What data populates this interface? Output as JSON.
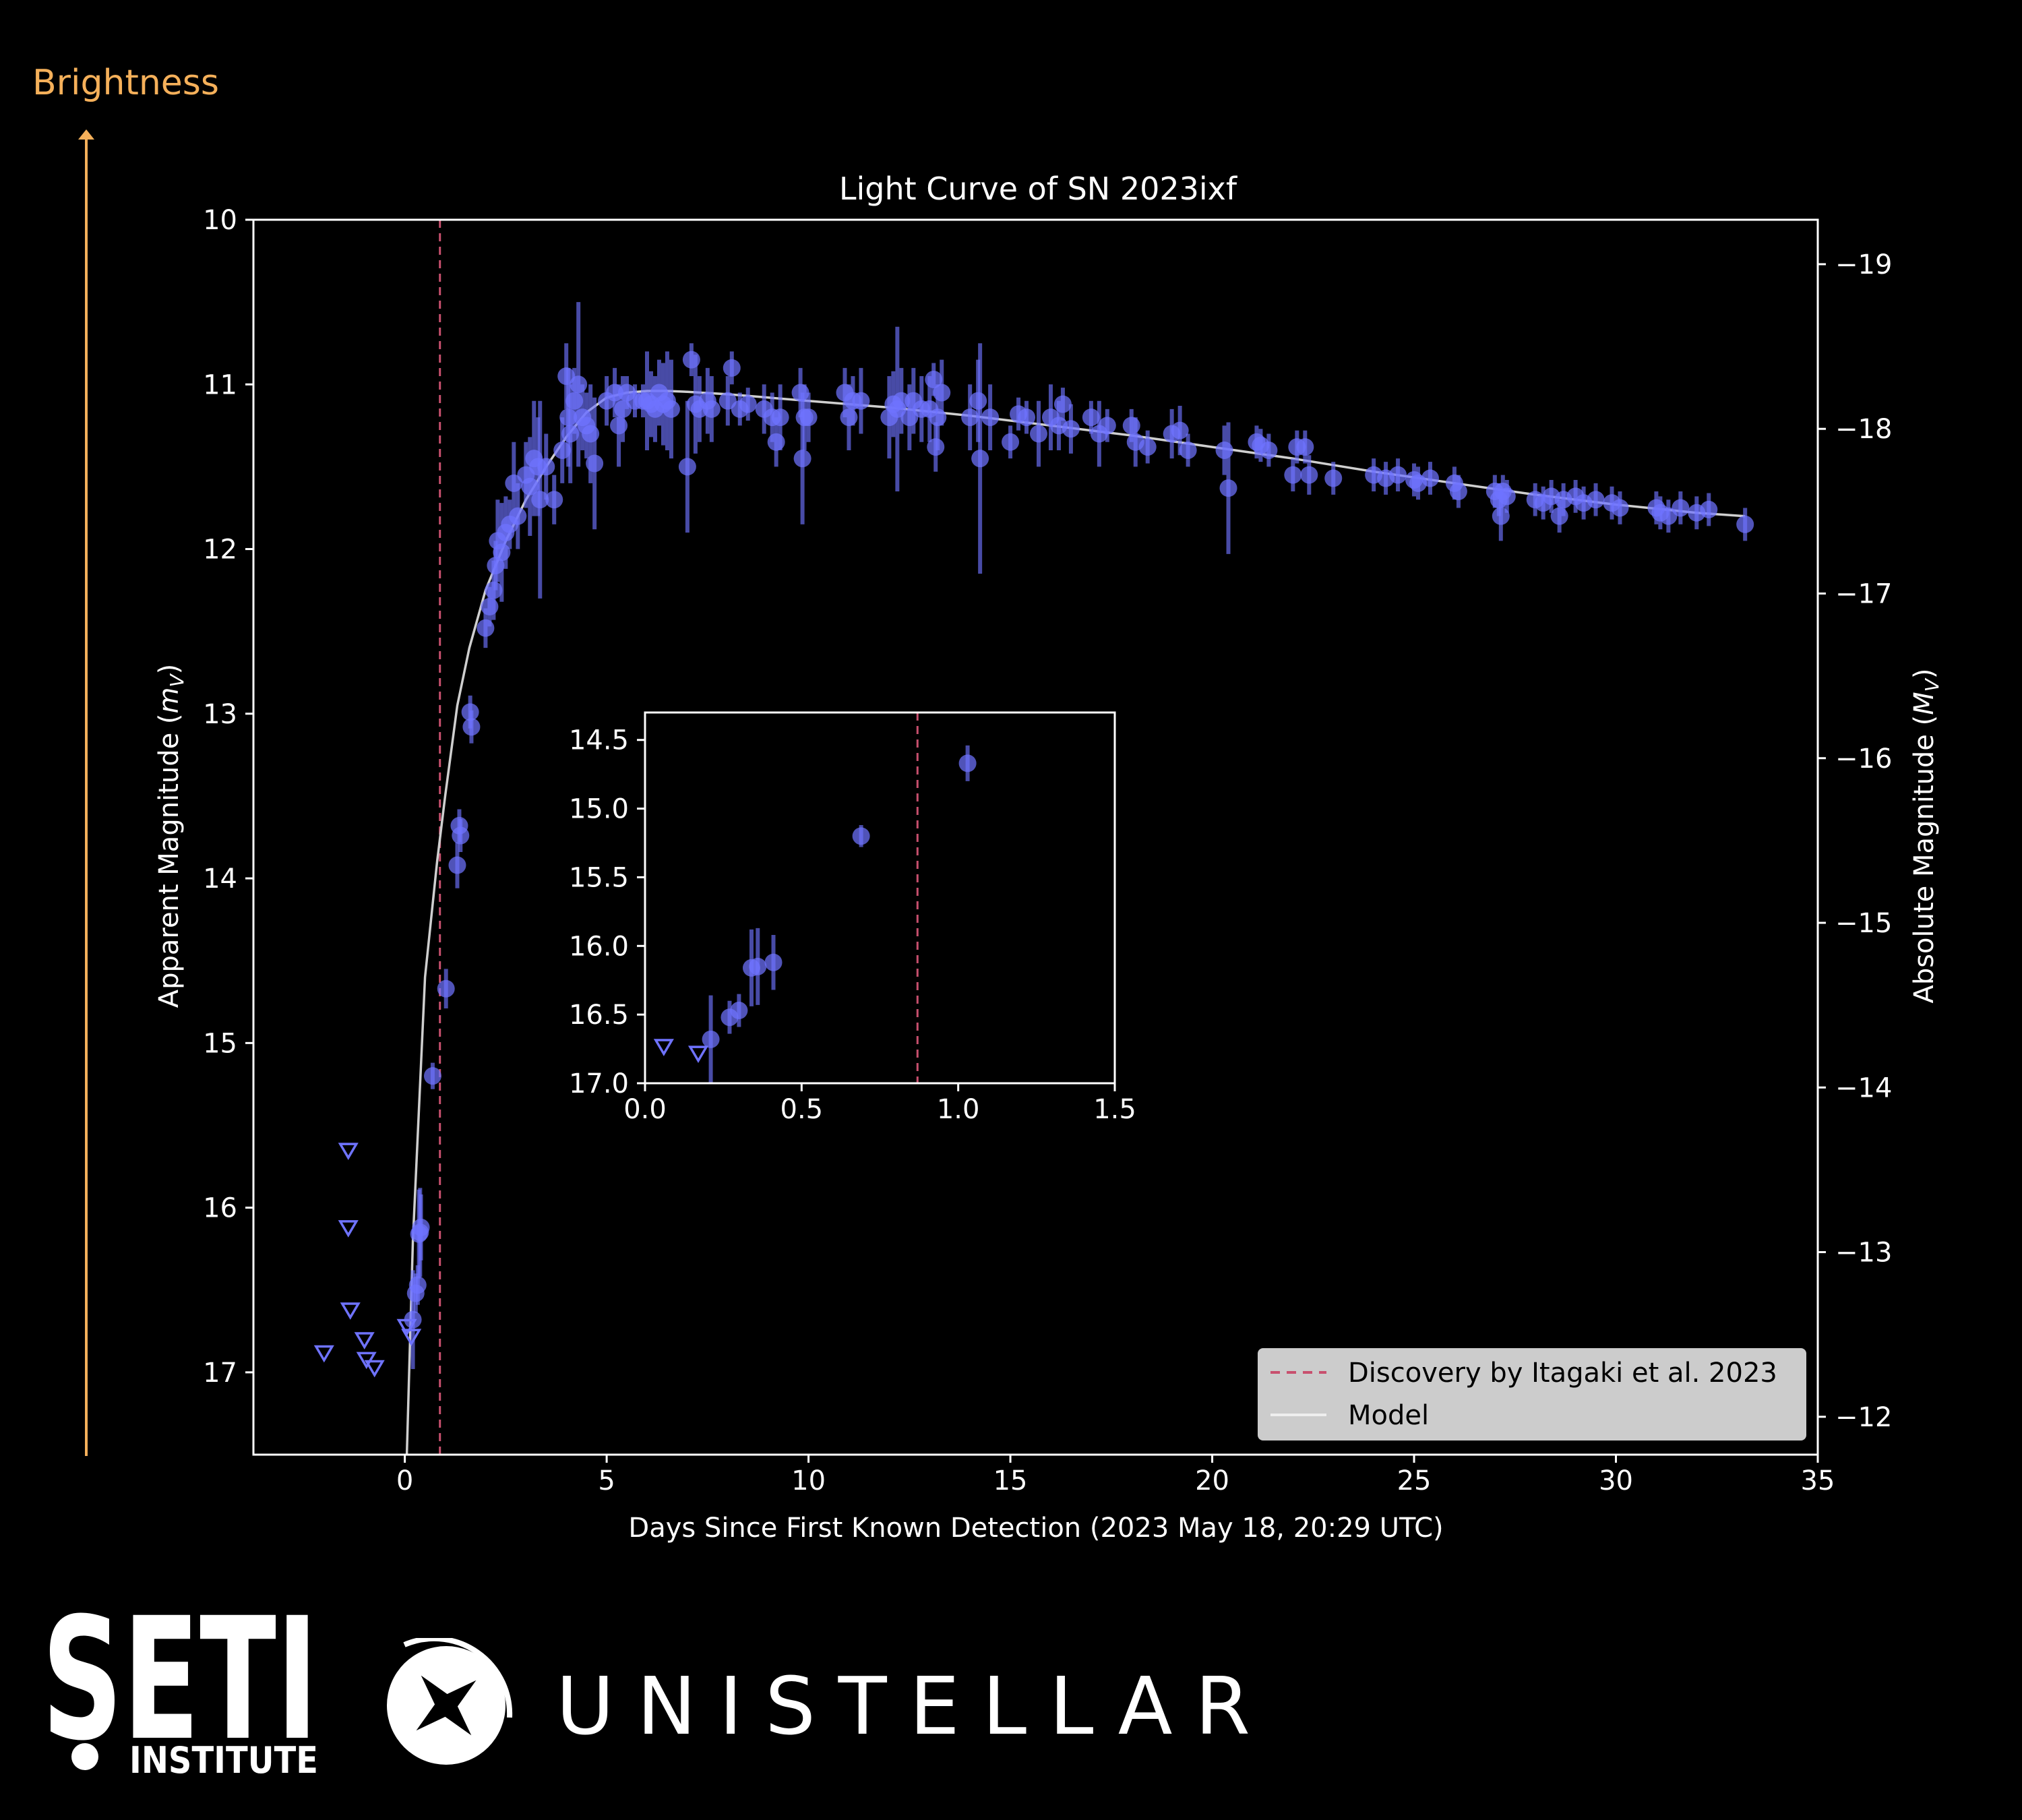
{
  "brightness_label": "Brightness",
  "logos": {
    "seti": {
      "icon": "seti-institute-logo",
      "text_main": "SETI",
      "text_sub": "INSTITUTE"
    },
    "unistellar": {
      "icon": "unistellar-logo",
      "text": "UNISTELLAR"
    }
  },
  "colors": {
    "background": "#000000",
    "data": "#6f73ff",
    "discovery": "#c8506e",
    "model": "#cfcfcf",
    "brightness": "#f5b05a",
    "legend_bg": "#cccccc"
  },
  "chart_data": [
    {
      "type": "scatter",
      "title": "Light Curve of SN 2023ixf",
      "xlabel": "Days Since First Known Detection (2023 May 18, 20:29 UTC)",
      "ylabel": "Apparent Magnitude (m_V)",
      "ylabel_parts": [
        "Apparent Magnitude (",
        "m",
        "V",
        ")"
      ],
      "y2label": "Absolute Magnitude (M_V)",
      "y2label_parts": [
        "Absolute Magnitude (",
        "M",
        "V",
        ")"
      ],
      "xlim": [
        -3.75,
        35
      ],
      "ylim": [
        17.5,
        10
      ],
      "y2lim": [
        -11.77,
        -19.27
      ],
      "xticks": [
        0,
        5,
        10,
        15,
        20,
        25,
        30,
        35
      ],
      "yticks": [
        10,
        11,
        12,
        13,
        14,
        15,
        16,
        17
      ],
      "y2ticks": [
        -19,
        -18,
        -17,
        -16,
        -15,
        -14,
        -13,
        -12
      ],
      "grid": false,
      "legend_position": "bottom-right",
      "legend": [
        {
          "label": "Discovery by Itagaki et al. 2023",
          "style": "dashed",
          "color": "#c8506e"
        },
        {
          "label": "Model",
          "style": "solid",
          "color": "#cfcfcf"
        }
      ],
      "discovery_x": 0.87,
      "upper_limits": [
        [
          -2.0,
          16.88
        ],
        [
          -1.4,
          15.65
        ],
        [
          -1.4,
          16.12
        ],
        [
          -1.35,
          16.62
        ],
        [
          -1.0,
          16.8
        ],
        [
          -0.95,
          16.92
        ],
        [
          -0.75,
          16.97
        ],
        [
          0.05,
          16.72
        ],
        [
          0.16,
          16.78
        ]
      ],
      "detections": [
        [
          0.2,
          16.68,
          0.3
        ],
        [
          0.27,
          16.52,
          0.12
        ],
        [
          0.32,
          16.47,
          0.12
        ],
        [
          0.35,
          16.16,
          0.27
        ],
        [
          0.38,
          16.15,
          0.27
        ],
        [
          0.4,
          16.12,
          0.2
        ],
        [
          0.69,
          15.2,
          0.08
        ],
        [
          1.02,
          14.67,
          0.12
        ],
        [
          1.3,
          13.92,
          0.14
        ],
        [
          1.35,
          13.68,
          0.1
        ],
        [
          1.38,
          13.74,
          0.1
        ],
        [
          1.62,
          12.99,
          0.1
        ],
        [
          1.65,
          13.08,
          0.1
        ],
        [
          2.0,
          12.48,
          0.12
        ],
        [
          2.1,
          12.35,
          0.12
        ],
        [
          2.2,
          12.25,
          0.18
        ],
        [
          2.25,
          12.1,
          0.15
        ],
        [
          2.3,
          11.95,
          0.25
        ],
        [
          2.4,
          12.02,
          0.3
        ],
        [
          2.5,
          11.9,
          0.22
        ],
        [
          2.6,
          11.85,
          0.15
        ],
        [
          2.7,
          11.6,
          0.25
        ],
        [
          2.8,
          11.8,
          0.2
        ],
        [
          3.0,
          11.55,
          0.2
        ],
        [
          3.1,
          11.62,
          0.3
        ],
        [
          3.2,
          11.45,
          0.35
        ],
        [
          3.3,
          11.5,
          0.3
        ],
        [
          3.35,
          11.7,
          0.6
        ],
        [
          3.5,
          11.5,
          0.2
        ],
        [
          3.7,
          11.7,
          0.15
        ],
        [
          3.9,
          11.4,
          0.2
        ],
        [
          4.0,
          10.95,
          0.2
        ],
        [
          4.05,
          11.2,
          0.3
        ],
        [
          4.1,
          11.3,
          0.3
        ],
        [
          4.2,
          11.1,
          0.2
        ],
        [
          4.3,
          11.0,
          0.5
        ],
        [
          4.4,
          11.2,
          0.2
        ],
        [
          4.5,
          11.25,
          0.2
        ],
        [
          4.6,
          11.3,
          0.3
        ],
        [
          4.7,
          11.48,
          0.4
        ],
        [
          5.0,
          11.1,
          0.15
        ],
        [
          5.2,
          11.05,
          0.15
        ],
        [
          5.3,
          11.25,
          0.25
        ],
        [
          5.4,
          11.15,
          0.2
        ],
        [
          5.5,
          11.05,
          0.1
        ],
        [
          5.7,
          11.1,
          0.1
        ],
        [
          5.9,
          11.1,
          0.1
        ],
        [
          6.0,
          11.1,
          0.3
        ],
        [
          6.1,
          11.12,
          0.2
        ],
        [
          6.2,
          11.15,
          0.2
        ],
        [
          6.3,
          11.05,
          0.2
        ],
        [
          6.4,
          11.12,
          0.25
        ],
        [
          6.5,
          11.1,
          0.3
        ],
        [
          6.6,
          11.15,
          0.3
        ],
        [
          7.0,
          11.5,
          0.4
        ],
        [
          7.1,
          10.85,
          0.1
        ],
        [
          7.2,
          11.12,
          0.3
        ],
        [
          7.3,
          11.15,
          0.2
        ],
        [
          7.5,
          11.1,
          0.2
        ],
        [
          7.6,
          11.15,
          0.2
        ],
        [
          8.0,
          11.1,
          0.15
        ],
        [
          8.1,
          10.9,
          0.1
        ],
        [
          8.3,
          11.15,
          0.1
        ],
        [
          8.5,
          11.12,
          0.1
        ],
        [
          8.9,
          11.15,
          0.15
        ],
        [
          9.1,
          11.2,
          0.15
        ],
        [
          9.3,
          11.2,
          0.2
        ],
        [
          9.2,
          11.35,
          0.15
        ],
        [
          9.8,
          11.05,
          0.15
        ],
        [
          9.9,
          11.2,
          0.2
        ],
        [
          9.85,
          11.45,
          0.4
        ],
        [
          10.0,
          11.2,
          0.15
        ],
        [
          10.9,
          11.05,
          0.15
        ],
        [
          11.0,
          11.2,
          0.2
        ],
        [
          11.1,
          11.1,
          0.15
        ],
        [
          11.3,
          11.1,
          0.2
        ],
        [
          12.0,
          11.2,
          0.25
        ],
        [
          12.1,
          11.12,
          0.2
        ],
        [
          12.2,
          11.15,
          0.5
        ],
        [
          12.3,
          11.1,
          0.2
        ],
        [
          12.5,
          11.2,
          0.2
        ],
        [
          12.6,
          11.1,
          0.2
        ],
        [
          12.8,
          11.15,
          0.2
        ],
        [
          13.0,
          11.15,
          0.2
        ],
        [
          13.1,
          10.97,
          0.1
        ],
        [
          13.2,
          11.2,
          0.2
        ],
        [
          13.3,
          11.05,
          0.2
        ],
        [
          13.15,
          11.38,
          0.15
        ],
        [
          14.0,
          11.2,
          0.2
        ],
        [
          14.2,
          11.1,
          0.25
        ],
        [
          14.25,
          11.45,
          0.7
        ],
        [
          14.5,
          11.2,
          0.2
        ],
        [
          15.0,
          11.35,
          0.1
        ],
        [
          15.2,
          11.18,
          0.1
        ],
        [
          15.4,
          11.2,
          0.1
        ],
        [
          15.7,
          11.3,
          0.2
        ],
        [
          16.0,
          11.2,
          0.2
        ],
        [
          16.2,
          11.25,
          0.15
        ],
        [
          16.3,
          11.12,
          0.1
        ],
        [
          16.5,
          11.27,
          0.15
        ],
        [
          17.0,
          11.2,
          0.1
        ],
        [
          17.2,
          11.3,
          0.2
        ],
        [
          17.4,
          11.25,
          0.1
        ],
        [
          18.0,
          11.25,
          0.1
        ],
        [
          18.1,
          11.35,
          0.15
        ],
        [
          18.4,
          11.38,
          0.1
        ],
        [
          19.0,
          11.3,
          0.15
        ],
        [
          19.2,
          11.28,
          0.15
        ],
        [
          19.4,
          11.4,
          0.1
        ],
        [
          20.3,
          11.4,
          0.15
        ],
        [
          20.4,
          11.63,
          0.4
        ],
        [
          21.1,
          11.35,
          0.1
        ],
        [
          21.2,
          11.37,
          0.1
        ],
        [
          21.4,
          11.4,
          0.1
        ],
        [
          22.0,
          11.55,
          0.1
        ],
        [
          22.1,
          11.38,
          0.1
        ],
        [
          22.3,
          11.38,
          0.1
        ],
        [
          22.4,
          11.55,
          0.12
        ],
        [
          23.0,
          11.57,
          0.1
        ],
        [
          24.0,
          11.55,
          0.1
        ],
        [
          24.3,
          11.57,
          0.1
        ],
        [
          24.6,
          11.55,
          0.1
        ],
        [
          25.0,
          11.58,
          0.1
        ],
        [
          25.1,
          11.6,
          0.1
        ],
        [
          25.4,
          11.57,
          0.1
        ],
        [
          26.0,
          11.6,
          0.1
        ],
        [
          26.1,
          11.65,
          0.1
        ],
        [
          27.0,
          11.65,
          0.1
        ],
        [
          27.1,
          11.7,
          0.1
        ],
        [
          27.2,
          11.65,
          0.1
        ],
        [
          27.15,
          11.8,
          0.15
        ],
        [
          27.3,
          11.68,
          0.1
        ],
        [
          28.0,
          11.7,
          0.1
        ],
        [
          28.2,
          11.72,
          0.1
        ],
        [
          28.4,
          11.68,
          0.1
        ],
        [
          28.6,
          11.8,
          0.1
        ],
        [
          28.7,
          11.7,
          0.1
        ],
        [
          29.0,
          11.68,
          0.1
        ],
        [
          29.2,
          11.72,
          0.1
        ],
        [
          29.5,
          11.7,
          0.1
        ],
        [
          29.9,
          11.72,
          0.1
        ],
        [
          30.1,
          11.75,
          0.1
        ],
        [
          31.0,
          11.75,
          0.1
        ],
        [
          31.1,
          11.78,
          0.1
        ],
        [
          31.3,
          11.8,
          0.1
        ],
        [
          31.6,
          11.75,
          0.1
        ],
        [
          32.0,
          11.78,
          0.1
        ],
        [
          32.3,
          11.76,
          0.1
        ],
        [
          33.2,
          11.85,
          0.1
        ]
      ],
      "model": [
        [
          0.05,
          17.5
        ],
        [
          0.2,
          16.2
        ],
        [
          0.5,
          14.6
        ],
        [
          0.8,
          13.9
        ],
        [
          1.0,
          13.5
        ],
        [
          1.3,
          12.95
        ],
        [
          1.6,
          12.6
        ],
        [
          2.0,
          12.25
        ],
        [
          2.5,
          11.95
        ],
        [
          3.0,
          11.7
        ],
        [
          3.5,
          11.5
        ],
        [
          4.0,
          11.32
        ],
        [
          4.5,
          11.17
        ],
        [
          5.0,
          11.08
        ],
        [
          5.5,
          11.05
        ],
        [
          6.0,
          11.04
        ],
        [
          6.5,
          11.04
        ],
        [
          7.0,
          11.045
        ],
        [
          8.0,
          11.06
        ],
        [
          9.0,
          11.08
        ],
        [
          10.0,
          11.1
        ],
        [
          12.0,
          11.14
        ],
        [
          14.0,
          11.19
        ],
        [
          16.0,
          11.25
        ],
        [
          18.0,
          11.31
        ],
        [
          20.0,
          11.38
        ],
        [
          22.0,
          11.45
        ],
        [
          24.0,
          11.53
        ],
        [
          26.0,
          11.6
        ],
        [
          28.0,
          11.67
        ],
        [
          30.0,
          11.73
        ],
        [
          32.0,
          11.78
        ],
        [
          33.2,
          11.8
        ]
      ]
    },
    {
      "type": "scatter",
      "panel": "inset",
      "xlim": [
        0,
        1.5
      ],
      "ylim": [
        17.0,
        14.3
      ],
      "xticks": [
        0.0,
        0.5,
        1.0,
        1.5
      ],
      "xtick_labels": [
        "0.0",
        "0.5",
        "1.0",
        "1.5"
      ],
      "yticks": [
        14.5,
        15.0,
        15.5,
        16.0,
        16.5,
        17.0
      ],
      "ytick_labels": [
        "14.5",
        "15.0",
        "15.5",
        "16.0",
        "16.5",
        "17.0"
      ],
      "discovery_x": 0.87,
      "upper_limits": [
        [
          0.06,
          16.73
        ],
        [
          0.17,
          16.78
        ]
      ],
      "detections": [
        [
          0.21,
          16.68,
          0.32
        ],
        [
          0.27,
          16.52,
          0.12
        ],
        [
          0.3,
          16.47,
          0.12
        ],
        [
          0.34,
          16.16,
          0.28
        ],
        [
          0.36,
          16.15,
          0.28
        ],
        [
          0.41,
          16.12,
          0.2
        ],
        [
          0.69,
          15.2,
          0.08
        ],
        [
          1.03,
          14.67,
          0.13
        ]
      ]
    }
  ]
}
